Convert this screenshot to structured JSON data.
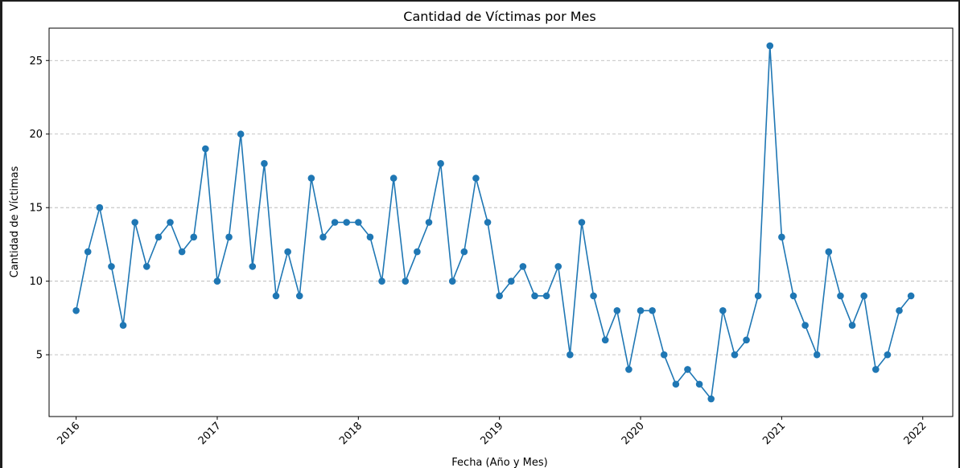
{
  "chart_data": {
    "type": "line",
    "title": "Cantidad de Víctimas por Mes",
    "xlabel": "Fecha (Año y Mes)",
    "ylabel": "Cantidad de Víctimas",
    "x_tick_labels": [
      "2016",
      "2017",
      "2018",
      "2019",
      "2020",
      "2021",
      "2022"
    ],
    "y_tick_labels": [
      "5",
      "10",
      "15",
      "20",
      "25"
    ],
    "y_ticks": [
      5,
      10,
      15,
      20,
      25
    ],
    "ylim": [
      0.8,
      27.2
    ],
    "xlim": [
      "2015-10",
      "2022-03"
    ],
    "grid": "y-dashed",
    "line_color": "#1f77b4",
    "series": [
      {
        "x": [
          "2016-01",
          "2016-02",
          "2016-03",
          "2016-04",
          "2016-05",
          "2016-06",
          "2016-07",
          "2016-08",
          "2016-09",
          "2016-10",
          "2016-11",
          "2016-12",
          "2017-01",
          "2017-02",
          "2017-03",
          "2017-04",
          "2017-05",
          "2017-06",
          "2017-07",
          "2017-08",
          "2017-09",
          "2017-10",
          "2017-11",
          "2017-12",
          "2018-01",
          "2018-02",
          "2018-03",
          "2018-04",
          "2018-05",
          "2018-06",
          "2018-07",
          "2018-08",
          "2018-09",
          "2018-10",
          "2018-11",
          "2018-12",
          "2019-01",
          "2019-02",
          "2019-03",
          "2019-04",
          "2019-05",
          "2019-06",
          "2019-07",
          "2019-08",
          "2019-09",
          "2019-10",
          "2019-11",
          "2019-12",
          "2020-01",
          "2020-02",
          "2020-03",
          "2020-04",
          "2020-05",
          "2020-06",
          "2020-07",
          "2020-08",
          "2020-09",
          "2020-10",
          "2020-11",
          "2020-12",
          "2021-01",
          "2021-02",
          "2021-03",
          "2021-04",
          "2021-05",
          "2021-06",
          "2021-07",
          "2021-08",
          "2021-09",
          "2021-10",
          "2021-11",
          "2021-12"
        ],
        "values": [
          8,
          12,
          15,
          11,
          7,
          14,
          11,
          13,
          14,
          12,
          13,
          19,
          10,
          13,
          20,
          11,
          18,
          9,
          12,
          9,
          17,
          13,
          14,
          14,
          14,
          13,
          10,
          17,
          10,
          12,
          14,
          18,
          10,
          12,
          17,
          14,
          9,
          10,
          11,
          9,
          9,
          11,
          5,
          14,
          9,
          6,
          8,
          4,
          8,
          8,
          5,
          3,
          4,
          3,
          2,
          8,
          5,
          6,
          9,
          26,
          13,
          9,
          7,
          5,
          12,
          9,
          7,
          9,
          4,
          5,
          8,
          9
        ]
      }
    ]
  }
}
